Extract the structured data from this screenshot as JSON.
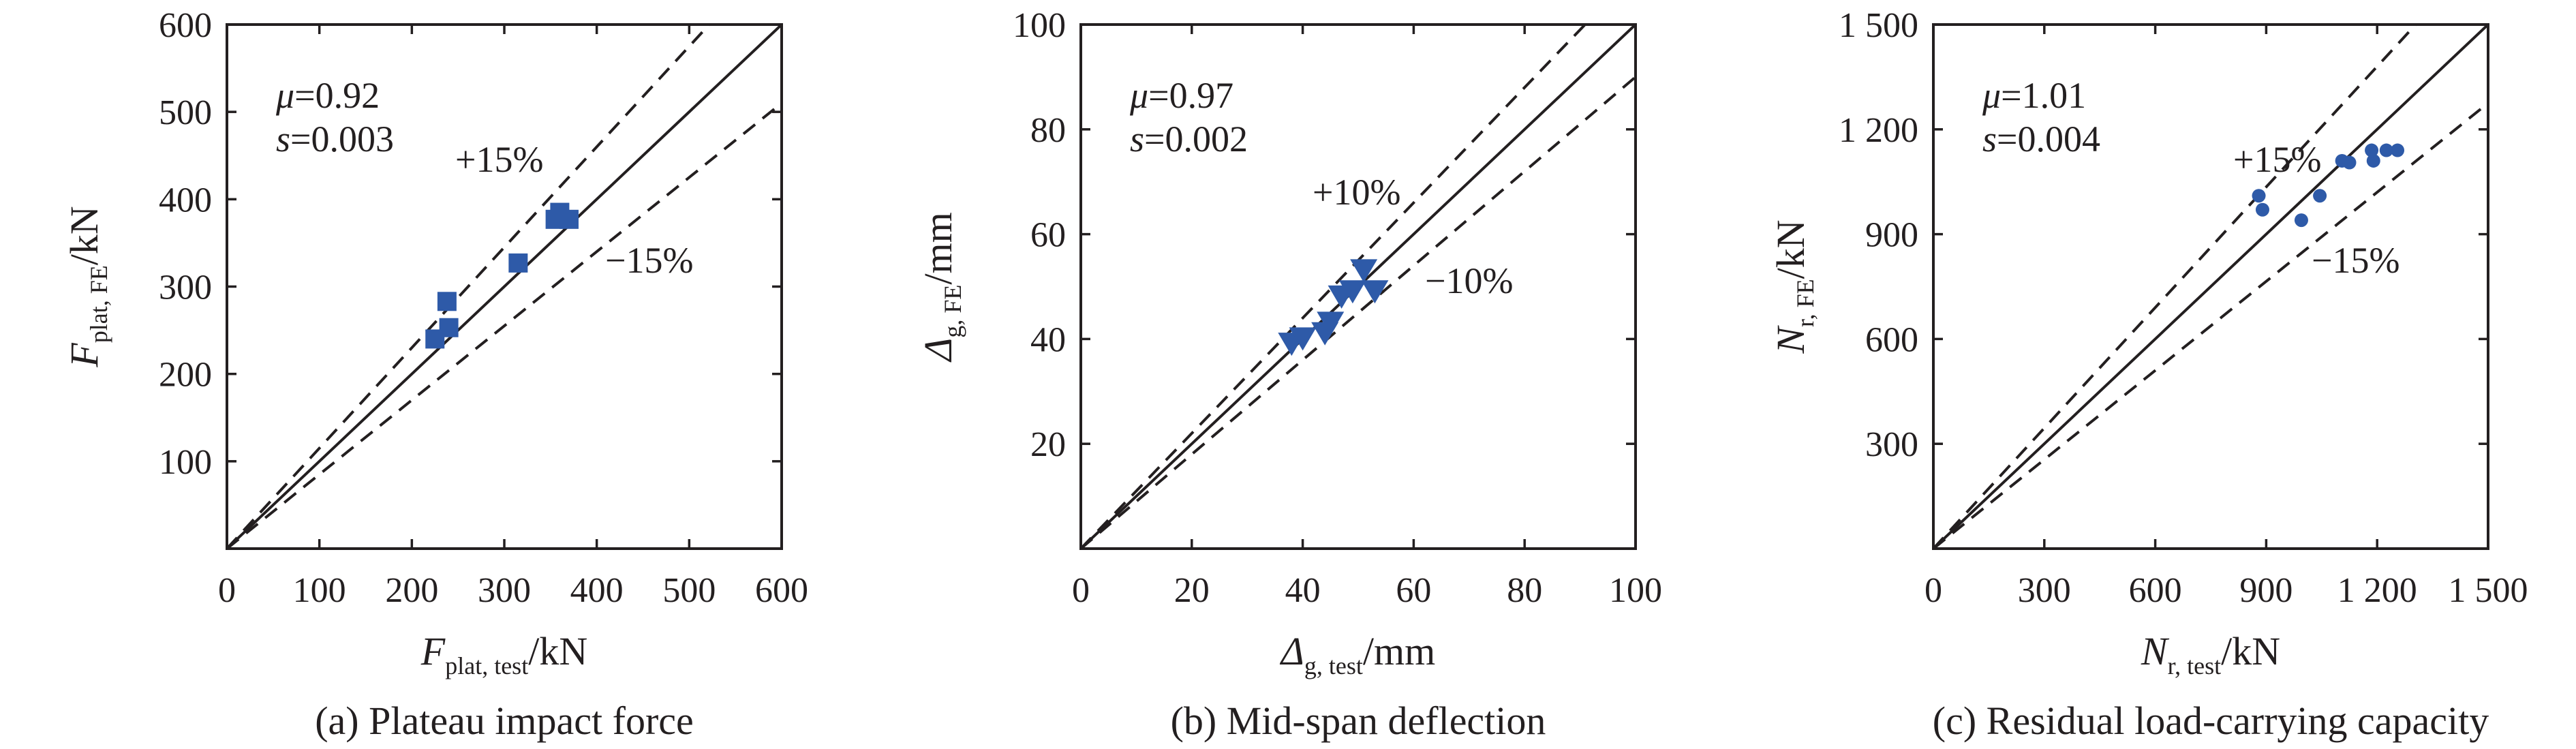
{
  "marker_color": "#2e5aa8",
  "chart_data": [
    {
      "type": "scatter",
      "marker": "square",
      "xlim": [
        0,
        600
      ],
      "ylim": [
        0,
        600
      ],
      "xticks": [
        "0",
        "100",
        "200",
        "300",
        "400",
        "500",
        "600"
      ],
      "yticks": [
        "100",
        "200",
        "300",
        "400",
        "500",
        "600"
      ],
      "xlabel": {
        "main": "F",
        "sub": "plat, test",
        "unit": "/kN"
      },
      "ylabel": {
        "main": "F",
        "sub": "plat, FE",
        "unit": "/kN"
      },
      "stats": {
        "mu_label": "μ",
        "mu_value": "=0.92",
        "s_label": "s",
        "s_value": "=0.003"
      },
      "bands": [
        {
          "label": "+15%",
          "slope": 1.15
        },
        {
          "label": "−15%",
          "slope": 0.85
        }
      ],
      "caption": "(a) Plateau impact force",
      "points": [
        {
          "x": 225,
          "y": 240
        },
        {
          "x": 238,
          "y": 283
        },
        {
          "x": 240,
          "y": 253
        },
        {
          "x": 315,
          "y": 327
        },
        {
          "x": 355,
          "y": 377
        },
        {
          "x": 360,
          "y": 385
        },
        {
          "x": 370,
          "y": 377
        }
      ]
    },
    {
      "type": "scatter",
      "marker": "triangle-down",
      "xlim": [
        0,
        100
      ],
      "ylim": [
        0,
        100
      ],
      "xticks": [
        "0",
        "20",
        "40",
        "60",
        "80",
        "100"
      ],
      "yticks": [
        "20",
        "40",
        "60",
        "80",
        "100"
      ],
      "xlabel": {
        "main": "Δ",
        "sub": "g, test",
        "unit": "/mm"
      },
      "ylabel": {
        "main": "Δ",
        "sub": "g, FE",
        "unit": "/mm"
      },
      "stats": {
        "mu_label": "μ",
        "mu_value": "=0.97",
        "s_label": "s",
        "s_value": "=0.002"
      },
      "bands": [
        {
          "label": "+10%",
          "slope": 1.1
        },
        {
          "label": "−10%",
          "slope": 0.9
        }
      ],
      "caption": "(b) Mid-span deflection",
      "points": [
        {
          "x": 38,
          "y": 39
        },
        {
          "x": 40,
          "y": 40
        },
        {
          "x": 44,
          "y": 41
        },
        {
          "x": 45,
          "y": 43
        },
        {
          "x": 47,
          "y": 48
        },
        {
          "x": 49,
          "y": 49
        },
        {
          "x": 51,
          "y": 53
        },
        {
          "x": 53,
          "y": 49
        }
      ]
    },
    {
      "type": "scatter",
      "marker": "circle",
      "xlim": [
        0,
        1500
      ],
      "ylim": [
        0,
        1500
      ],
      "xticks": [
        "0",
        "300",
        "600",
        "900",
        "1 200",
        "1 500"
      ],
      "yticks": [
        "300",
        "600",
        "900",
        "1 200",
        "1 500"
      ],
      "xlabel": {
        "main": "N",
        "sub": "r, test",
        "unit": "/kN"
      },
      "ylabel": {
        "main": "N",
        "sub": "r, FE",
        "unit": "/kN"
      },
      "stats": {
        "mu_label": "μ",
        "mu_value": "=1.01",
        "s_label": "s",
        "s_value": "=0.004"
      },
      "bands": [
        {
          "label": "+15%",
          "slope": 1.15
        },
        {
          "label": "−15%",
          "slope": 0.85
        }
      ],
      "caption": "(c) Residual load-carrying capacity",
      "points": [
        {
          "x": 880,
          "y": 1010
        },
        {
          "x": 890,
          "y": 970
        },
        {
          "x": 995,
          "y": 940
        },
        {
          "x": 1045,
          "y": 1010
        },
        {
          "x": 1105,
          "y": 1110
        },
        {
          "x": 1125,
          "y": 1105
        },
        {
          "x": 1185,
          "y": 1140
        },
        {
          "x": 1190,
          "y": 1110
        },
        {
          "x": 1225,
          "y": 1140
        },
        {
          "x": 1255,
          "y": 1140
        }
      ]
    }
  ]
}
